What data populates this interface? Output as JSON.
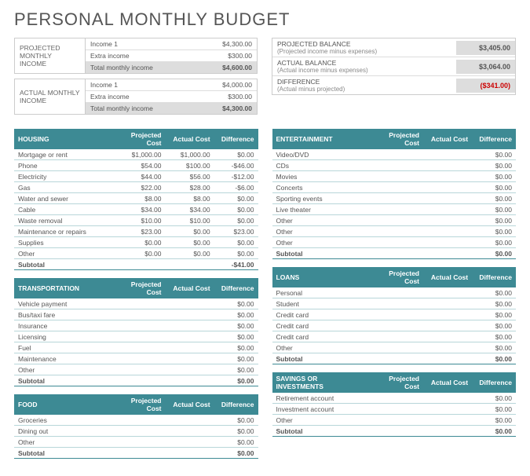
{
  "title": "PERSONAL MONTHLY BUDGET",
  "projected_income": {
    "label": "PROJECTED MONTHLY INCOME",
    "rows": [
      {
        "name": "Income 1",
        "val": "$4,300.00"
      },
      {
        "name": "Extra income",
        "val": "$300.00"
      },
      {
        "name": "Total monthly income",
        "val": "$4,600.00"
      }
    ]
  },
  "actual_income": {
    "label": "ACTUAL MONTHLY INCOME",
    "rows": [
      {
        "name": "Income 1",
        "val": "$4,000.00"
      },
      {
        "name": "Extra income",
        "val": "$300.00"
      },
      {
        "name": "Total monthly income",
        "val": "$4,300.00"
      }
    ]
  },
  "balances": [
    {
      "main": "PROJECTED BALANCE",
      "sub": "(Projected income minus expenses)",
      "val": "$3,405.00",
      "neg": false
    },
    {
      "main": "ACTUAL BALANCE",
      "sub": "(Actual income minus expenses)",
      "val": "$3,064.00",
      "neg": false
    },
    {
      "main": "DIFFERENCE",
      "sub": "(Actual minus projected)",
      "val": "($341.00)",
      "neg": true
    }
  ],
  "col_headers": [
    "Projected Cost",
    "Actual Cost",
    "Difference"
  ],
  "subtotal_label": "Subtotal",
  "left_categories": [
    {
      "name": "HOUSING",
      "rows": [
        {
          "n": "Mortgage or rent",
          "p": "$1,000.00",
          "a": "$1,000.00",
          "d": "$0.00"
        },
        {
          "n": "Phone",
          "p": "$54.00",
          "a": "$100.00",
          "d": "-$46.00"
        },
        {
          "n": "Electricity",
          "p": "$44.00",
          "a": "$56.00",
          "d": "-$12.00"
        },
        {
          "n": "Gas",
          "p": "$22.00",
          "a": "$28.00",
          "d": "-$6.00"
        },
        {
          "n": "Water and sewer",
          "p": "$8.00",
          "a": "$8.00",
          "d": "$0.00"
        },
        {
          "n": "Cable",
          "p": "$34.00",
          "a": "$34.00",
          "d": "$0.00"
        },
        {
          "n": "Waste removal",
          "p": "$10.00",
          "a": "$10.00",
          "d": "$0.00"
        },
        {
          "n": "Maintenance or repairs",
          "p": "$23.00",
          "a": "$0.00",
          "d": "$23.00"
        },
        {
          "n": "Supplies",
          "p": "$0.00",
          "a": "$0.00",
          "d": "$0.00"
        },
        {
          "n": "Other",
          "p": "$0.00",
          "a": "$0.00",
          "d": "$0.00"
        }
      ],
      "subtotal": "-$41.00"
    },
    {
      "name": "TRANSPORTATION",
      "rows": [
        {
          "n": "Vehicle payment",
          "p": "",
          "a": "",
          "d": "$0.00"
        },
        {
          "n": "Bus/taxi fare",
          "p": "",
          "a": "",
          "d": "$0.00"
        },
        {
          "n": "Insurance",
          "p": "",
          "a": "",
          "d": "$0.00"
        },
        {
          "n": "Licensing",
          "p": "",
          "a": "",
          "d": "$0.00"
        },
        {
          "n": "Fuel",
          "p": "",
          "a": "",
          "d": "$0.00"
        },
        {
          "n": "Maintenance",
          "p": "",
          "a": "",
          "d": "$0.00"
        },
        {
          "n": "Other",
          "p": "",
          "a": "",
          "d": "$0.00"
        }
      ],
      "subtotal": "$0.00"
    },
    {
      "name": "FOOD",
      "rows": [
        {
          "n": "Groceries",
          "p": "",
          "a": "",
          "d": "$0.00"
        },
        {
          "n": "Dining out",
          "p": "",
          "a": "",
          "d": "$0.00"
        },
        {
          "n": "Other",
          "p": "",
          "a": "",
          "d": "$0.00"
        }
      ],
      "subtotal": "$0.00"
    }
  ],
  "right_categories": [
    {
      "name": "ENTERTAINMENT",
      "rows": [
        {
          "n": "Video/DVD",
          "p": "",
          "a": "",
          "d": "$0.00"
        },
        {
          "n": "CDs",
          "p": "",
          "a": "",
          "d": "$0.00"
        },
        {
          "n": "Movies",
          "p": "",
          "a": "",
          "d": "$0.00"
        },
        {
          "n": "Concerts",
          "p": "",
          "a": "",
          "d": "$0.00"
        },
        {
          "n": "Sporting events",
          "p": "",
          "a": "",
          "d": "$0.00"
        },
        {
          "n": "Live theater",
          "p": "",
          "a": "",
          "d": "$0.00"
        },
        {
          "n": "Other",
          "p": "",
          "a": "",
          "d": "$0.00"
        },
        {
          "n": "Other",
          "p": "",
          "a": "",
          "d": "$0.00"
        },
        {
          "n": "Other",
          "p": "",
          "a": "",
          "d": "$0.00"
        }
      ],
      "subtotal": "$0.00"
    },
    {
      "name": "LOANS",
      "rows": [
        {
          "n": "Personal",
          "p": "",
          "a": "",
          "d": "$0.00"
        },
        {
          "n": "Student",
          "p": "",
          "a": "",
          "d": "$0.00"
        },
        {
          "n": "Credit card",
          "p": "",
          "a": "",
          "d": "$0.00"
        },
        {
          "n": "Credit card",
          "p": "",
          "a": "",
          "d": "$0.00"
        },
        {
          "n": "Credit card",
          "p": "",
          "a": "",
          "d": "$0.00"
        },
        {
          "n": "Other",
          "p": "",
          "a": "",
          "d": "$0.00"
        }
      ],
      "subtotal": "$0.00"
    },
    {
      "name": "SAVINGS OR INVESTMENTS",
      "rows": [
        {
          "n": "Retirement account",
          "p": "",
          "a": "",
          "d": "$0.00"
        },
        {
          "n": "Investment account",
          "p": "",
          "a": "",
          "d": "$0.00"
        },
        {
          "n": "Other",
          "p": "",
          "a": "",
          "d": "$0.00"
        }
      ],
      "subtotal": "$0.00"
    }
  ],
  "colors": {
    "header_bg": "#3d8a94",
    "header_fg": "#ffffff",
    "row_border": "#b8d6d9",
    "page_bg": "#ffffff"
  }
}
